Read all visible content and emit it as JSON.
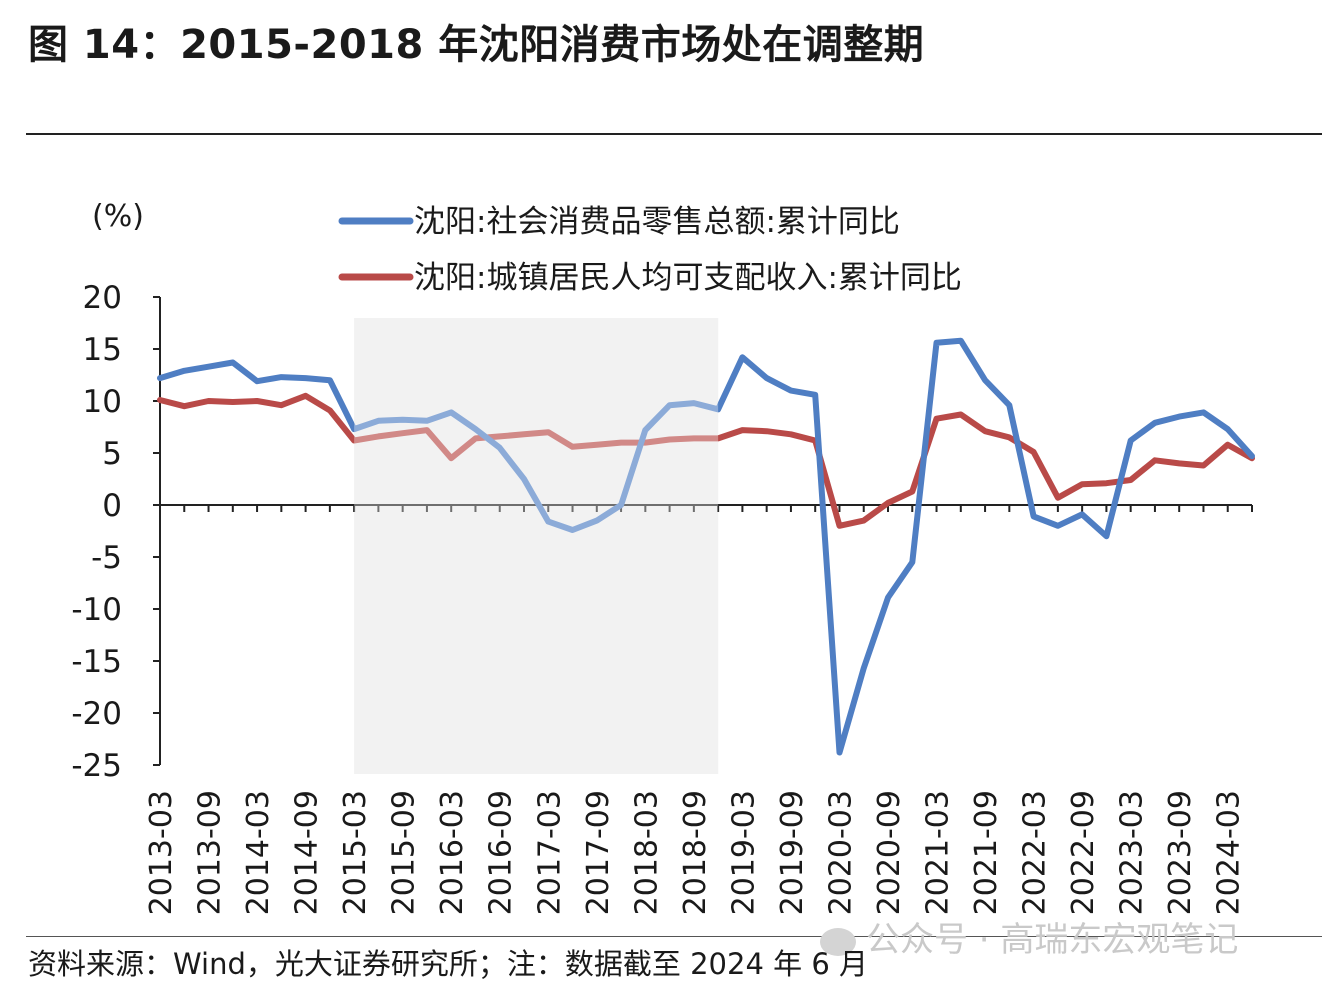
{
  "header": {
    "title": "图 14：2015-2018 年沈阳消费市场处在调整期"
  },
  "footer": {
    "source": "资料来源：Wind，光大证券研究所；注：数据截至 2024 年 6 月",
    "watermark": "公众号 · 高瑞东宏观笔记"
  },
  "colors": {
    "retail": "#4F7EC3",
    "income": "#B94A48",
    "shade": "#ECECEC"
  },
  "chart_data": {
    "type": "line",
    "title": "",
    "ylabel": "(%)",
    "xlabel": "",
    "ylim": [
      -25,
      20
    ],
    "yticks": [
      20,
      15,
      10,
      5,
      0,
      -5,
      -10,
      -15,
      -20,
      -25
    ],
    "grid": false,
    "legend_position": "top",
    "shaded_period": [
      "2015-03",
      "2018-12"
    ],
    "tick_labels": [
      "2013-03",
      "2013-09",
      "2014-03",
      "2014-09",
      "2015-03",
      "2015-09",
      "2016-03",
      "2016-09",
      "2017-03",
      "2017-09",
      "2018-03",
      "2018-09",
      "2019-03",
      "2019-09",
      "2020-03",
      "2020-09",
      "2021-03",
      "2021-09",
      "2022-03",
      "2022-09",
      "2023-03",
      "2023-09",
      "2024-03"
    ],
    "x": [
      "2013-03",
      "2013-06",
      "2013-09",
      "2013-12",
      "2014-03",
      "2014-06",
      "2014-09",
      "2014-12",
      "2015-03",
      "2015-06",
      "2015-09",
      "2015-12",
      "2016-03",
      "2016-06",
      "2016-09",
      "2016-12",
      "2017-03",
      "2017-06",
      "2017-09",
      "2017-12",
      "2018-03",
      "2018-06",
      "2018-09",
      "2018-12",
      "2019-03",
      "2019-06",
      "2019-09",
      "2019-12",
      "2020-03",
      "2020-06",
      "2020-09",
      "2020-12",
      "2021-03",
      "2021-06",
      "2021-09",
      "2021-12",
      "2022-03",
      "2022-06",
      "2022-09",
      "2022-12",
      "2023-03",
      "2023-06",
      "2023-09",
      "2023-12",
      "2024-03",
      "2024-06"
    ],
    "series": [
      {
        "name": "沈阳:社会消费品零售总额:累计同比",
        "values": [
          12.2,
          12.9,
          13.3,
          13.7,
          11.9,
          12.3,
          12.2,
          12.0,
          7.3,
          8.1,
          8.2,
          8.1,
          8.9,
          7.3,
          5.5,
          2.5,
          -1.6,
          -2.4,
          -1.5,
          0.0,
          7.2,
          9.6,
          9.8,
          9.2,
          14.2,
          12.2,
          11.0,
          10.6,
          -23.8,
          -15.7,
          -8.9,
          -5.5,
          15.6,
          15.8,
          12.0,
          9.6,
          -1.1,
          -2.0,
          -0.9,
          -3.0,
          6.2,
          7.9,
          8.5,
          8.9,
          7.3,
          4.7
        ]
      },
      {
        "name": "沈阳:城镇居民人均可支配收入:累计同比",
        "values": [
          10.1,
          9.5,
          10.0,
          9.9,
          10.0,
          9.6,
          10.5,
          9.1,
          6.2,
          6.6,
          6.9,
          7.2,
          4.5,
          6.4,
          6.6,
          6.8,
          7.0,
          5.6,
          5.8,
          6.0,
          6.0,
          6.3,
          6.4,
          6.4,
          7.2,
          7.1,
          6.8,
          6.2,
          -2.0,
          -1.5,
          0.2,
          1.3,
          8.3,
          8.7,
          7.1,
          6.5,
          5.1,
          0.7,
          2.0,
          2.1,
          2.4,
          4.3,
          4.0,
          3.8,
          5.8,
          4.5
        ]
      }
    ]
  }
}
